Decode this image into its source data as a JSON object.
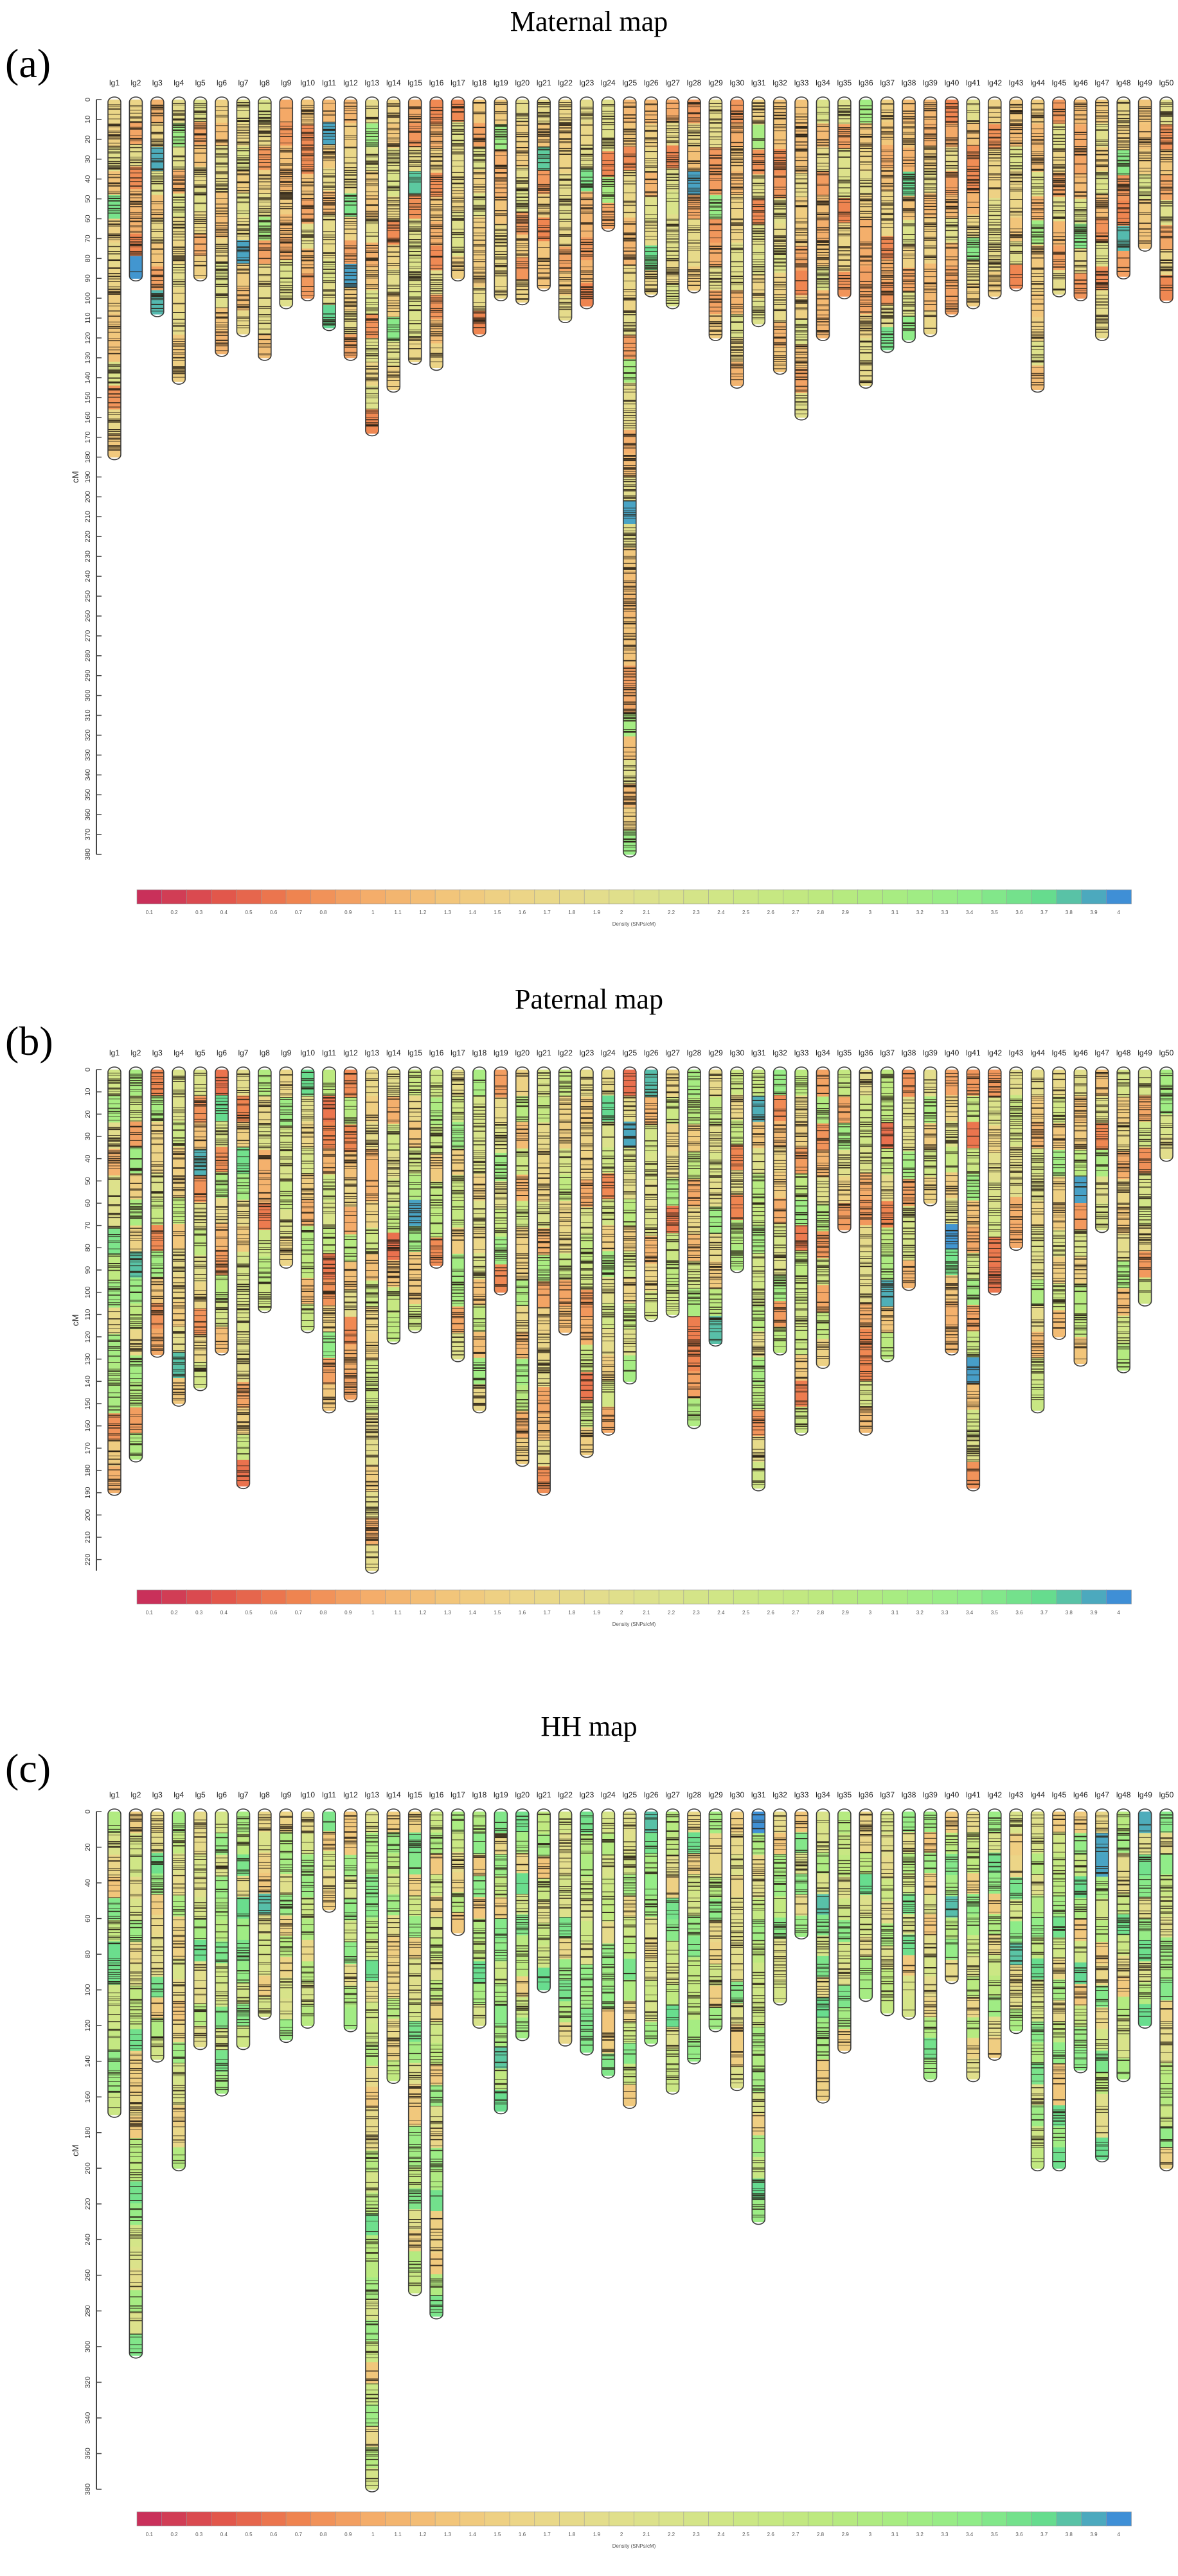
{
  "panels": [
    {
      "id": "a",
      "letter": "(a)",
      "title": "Maternal map"
    },
    {
      "id": "b",
      "letter": "(b)",
      "title": "Paternal map"
    },
    {
      "id": "c",
      "letter": "(c)",
      "title": "HH map"
    }
  ],
  "chart_data": [
    {
      "type": "heatmap",
      "title": "Maternal map",
      "ylabel": "cM",
      "ylim": [
        0,
        380
      ],
      "y_ticks": [
        0,
        10,
        20,
        30,
        40,
        50,
        60,
        70,
        80,
        90,
        100,
        110,
        120,
        130,
        140,
        150,
        160,
        170,
        180,
        190,
        200,
        210,
        220,
        230,
        240,
        250,
        260,
        270,
        280,
        290,
        300,
        310,
        320,
        330,
        340,
        350,
        360,
        370,
        380
      ],
      "linkage_groups": [
        "lg1",
        "lg2",
        "lg3",
        "lg4",
        "lg5",
        "lg6",
        "lg7",
        "lg8",
        "lg9",
        "lg10",
        "lg11",
        "lg12",
        "lg13",
        "lg14",
        "lg15",
        "lg16",
        "lg17",
        "lg18",
        "lg19",
        "lg20",
        "lg21",
        "lg22",
        "lg23",
        "lg24",
        "lg25",
        "lg26",
        "lg27",
        "lg28",
        "lg29",
        "lg30",
        "lg31",
        "lg32",
        "lg33",
        "lg34",
        "lg35",
        "lg36",
        "lg37",
        "lg38",
        "lg39",
        "lg40",
        "lg41",
        "lg42",
        "lg43",
        "lg44",
        "lg45",
        "lg46",
        "lg47",
        "lg48",
        "lg49",
        "lg50"
      ],
      "lengths_cM": [
        180,
        90,
        108,
        142,
        90,
        128,
        118,
        130,
        104,
        100,
        115,
        130,
        168,
        146,
        132,
        135,
        90,
        118,
        100,
        102,
        95,
        111,
        104,
        65,
        380,
        98,
        104,
        96,
        120,
        144,
        113,
        137,
        160,
        120,
        99,
        144,
        126,
        121,
        118,
        108,
        104,
        99,
        95,
        146,
        98,
        100,
        120,
        89,
        75,
        101
      ],
      "legend_values": [
        "0.1",
        "0.2",
        "0.3",
        "0.4",
        "0.5",
        "0.6",
        "0.7",
        "0.8",
        "0.9",
        "1",
        "1.1",
        "1.2",
        "1.3",
        "1.4",
        "1.5",
        "1.6",
        "1.7",
        "1.8",
        "1.9",
        "2",
        "2.1",
        "2.2",
        "2.3",
        "2.4",
        "2.5",
        "2.6",
        "2.7",
        "2.8",
        "2.9",
        "3",
        "3.1",
        "3.2",
        "3.3",
        "3.4",
        "3.5",
        "3.6",
        "3.7",
        "3.8",
        "3.9",
        "4"
      ],
      "legend_title": "Density (SNPs/cM)"
    },
    {
      "type": "heatmap",
      "title": "Paternal map",
      "ylabel": "cM",
      "ylim": [
        0,
        225
      ],
      "y_ticks": [
        0,
        10,
        20,
        30,
        40,
        50,
        60,
        70,
        80,
        90,
        100,
        110,
        120,
        130,
        140,
        150,
        160,
        170,
        180,
        190,
        200,
        210,
        220
      ],
      "linkage_groups": [
        "lg1",
        "lg2",
        "lg3",
        "lg4",
        "lg5",
        "lg6",
        "lg7",
        "lg8",
        "lg9",
        "lg10",
        "lg11",
        "lg12",
        "lg13",
        "lg14",
        "lg15",
        "lg16",
        "lg17",
        "lg18",
        "lg19",
        "lg20",
        "lg21",
        "lg22",
        "lg23",
        "lg24",
        "lg25",
        "lg26",
        "lg27",
        "lg28",
        "lg29",
        "lg30",
        "lg31",
        "lg32",
        "lg33",
        "lg34",
        "lg35",
        "lg36",
        "lg37",
        "lg38",
        "lg39",
        "lg40",
        "lg41",
        "lg42",
        "lg43",
        "lg44",
        "lg45",
        "lg46",
        "lg47",
        "lg48",
        "lg49",
        "lg50"
      ],
      "lengths_cM": [
        190,
        175,
        128,
        150,
        143,
        127,
        187,
        108,
        88,
        117,
        153,
        148,
        225,
        122,
        117,
        88,
        130,
        153,
        100,
        177,
        190,
        118,
        173,
        163,
        140,
        112,
        110,
        160,
        123,
        90,
        188,
        127,
        163,
        133,
        72,
        163,
        130,
        98,
        60,
        127,
        188,
        100,
        80,
        153,
        120,
        132,
        72,
        135,
        105,
        40
      ],
      "legend_values": [
        "0.1",
        "0.2",
        "0.3",
        "0.4",
        "0.5",
        "0.6",
        "0.7",
        "0.8",
        "0.9",
        "1",
        "1.1",
        "1.2",
        "1.3",
        "1.4",
        "1.5",
        "1.6",
        "1.7",
        "1.8",
        "1.9",
        "2",
        "2.1",
        "2.2",
        "2.3",
        "2.4",
        "2.5",
        "2.6",
        "2.7",
        "2.8",
        "2.9",
        "3",
        "3.1",
        "3.2",
        "3.3",
        "3.4",
        "3.5",
        "3.6",
        "3.7",
        "3.8",
        "3.9",
        "4"
      ],
      "legend_title": "Density (SNPs/cM)"
    },
    {
      "type": "heatmap",
      "title": "HH map",
      "ylabel": "cM",
      "ylim": [
        0,
        380
      ],
      "y_ticks": [
        0,
        20,
        40,
        60,
        80,
        100,
        120,
        140,
        160,
        180,
        200,
        220,
        240,
        260,
        280,
        300,
        320,
        340,
        360,
        380
      ],
      "linkage_groups": [
        "lg1",
        "lg2",
        "lg3",
        "lg4",
        "lg5",
        "lg6",
        "lg7",
        "lg8",
        "lg9",
        "lg10",
        "lg11",
        "lg12",
        "lg13",
        "lg14",
        "lg15",
        "lg16",
        "lg17",
        "lg18",
        "lg19",
        "lg20",
        "lg21",
        "lg22",
        "lg23",
        "lg24",
        "lg25",
        "lg26",
        "lg27",
        "lg28",
        "lg29",
        "lg30",
        "lg31",
        "lg32",
        "lg33",
        "lg34",
        "lg35",
        "lg36",
        "lg37",
        "lg38",
        "lg39",
        "lg40",
        "lg41",
        "lg42",
        "lg43",
        "lg44",
        "lg45",
        "lg46",
        "lg47",
        "lg48",
        "lg49",
        "lg50"
      ],
      "lengths_cM": [
        170,
        305,
        139,
        200,
        132,
        158,
        132,
        115,
        128,
        120,
        55,
        122,
        380,
        151,
        270,
        283,
        68,
        120,
        168,
        127,
        100,
        130,
        135,
        148,
        165,
        130,
        157,
        140,
        122,
        155,
        230,
        107,
        70,
        162,
        134,
        105,
        113,
        115,
        150,
        95,
        150,
        138,
        123,
        200,
        200,
        145,
        195,
        150,
        120,
        200
      ],
      "legend_values": [
        "0.1",
        "0.2",
        "0.3",
        "0.4",
        "0.5",
        "0.6",
        "0.7",
        "0.8",
        "0.9",
        "1",
        "1.1",
        "1.2",
        "1.3",
        "1.4",
        "1.5",
        "1.6",
        "1.7",
        "1.8",
        "1.9",
        "2",
        "2.1",
        "2.2",
        "2.3",
        "2.4",
        "2.5",
        "2.6",
        "2.7",
        "2.8",
        "2.9",
        "3",
        "3.1",
        "3.2",
        "3.3",
        "3.4",
        "3.5",
        "3.6",
        "3.7",
        "3.8",
        "3.9",
        "4"
      ],
      "legend_title": "Density (SNPs/cM)"
    }
  ],
  "colors": {
    "scale": [
      "#c9305a",
      "#e2574b",
      "#ef8450",
      "#f4ad6a",
      "#f2c57a",
      "#ecd587",
      "#e3dd8c",
      "#d9e38a",
      "#cbe784",
      "#bde97f",
      "#a8ec82",
      "#90ec88",
      "#66dc8e",
      "#3f8fd6"
    ],
    "marker": "#2b2216",
    "outline": "#3a3a3a"
  }
}
